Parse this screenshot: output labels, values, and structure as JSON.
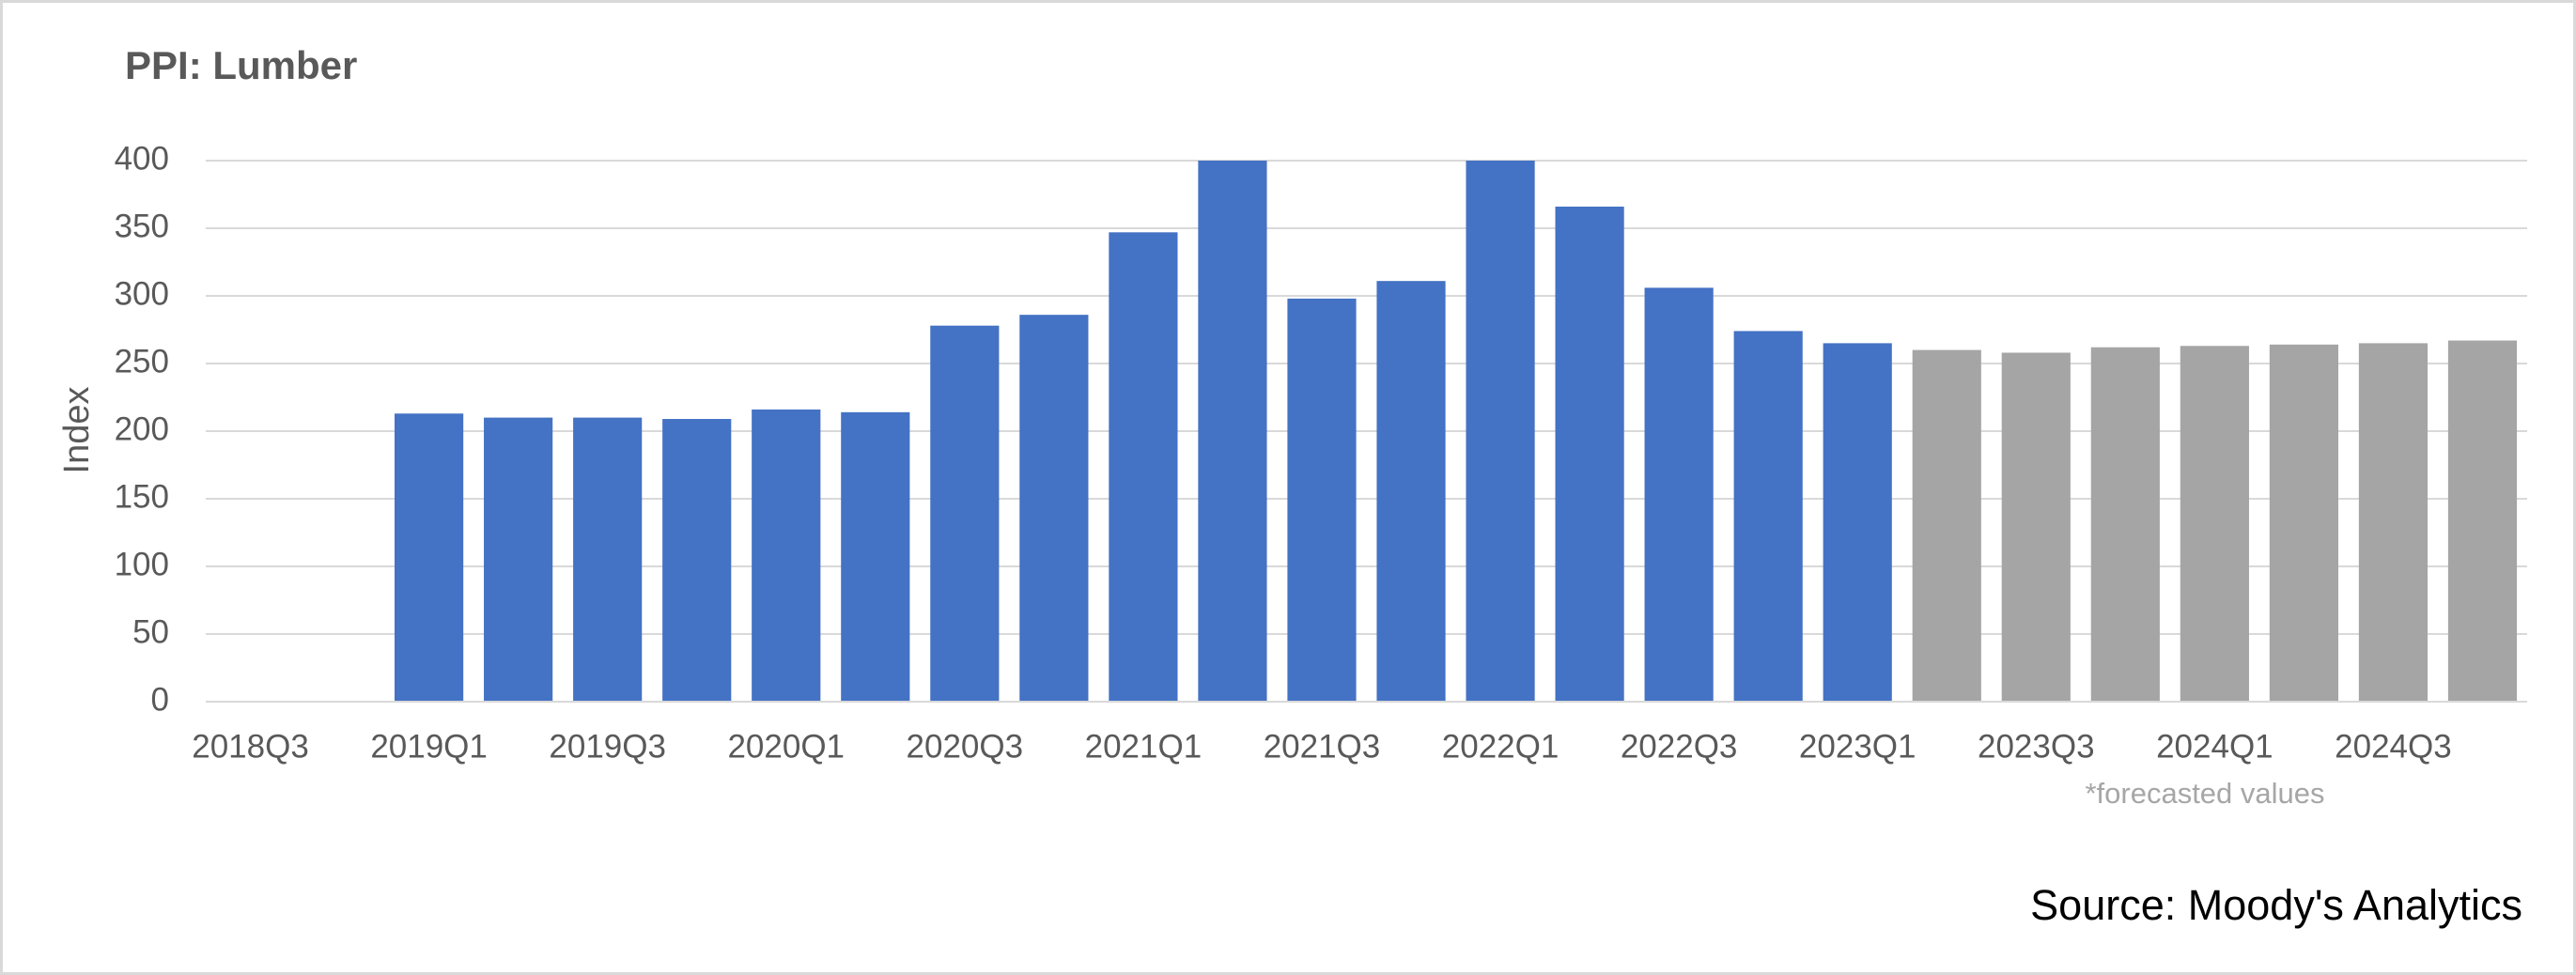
{
  "chart_data": {
    "type": "bar",
    "title": "PPI: Lumber",
    "y_label": "Index",
    "categories": [
      "2018Q3",
      null,
      "2019Q1",
      null,
      "2019Q3",
      null,
      "2020Q1",
      null,
      "2020Q3",
      null,
      "2021Q1",
      null,
      "2021Q3",
      null,
      "2022Q1",
      null,
      "2022Q3",
      null,
      "2023Q1",
      null,
      "2023Q3",
      null,
      "2024Q1",
      null,
      "2024Q3",
      null
    ],
    "values": [
      null,
      null,
      213,
      210,
      210,
      209,
      216,
      214,
      278,
      286,
      347,
      400,
      298,
      311,
      400,
      366,
      306,
      274,
      265,
      260,
      258,
      262,
      263,
      264,
      265,
      267
    ],
    "colors": [
      null,
      null,
      "#4472c4",
      "#4472c4",
      "#4472c4",
      "#4472c4",
      "#4472c4",
      "#4472c4",
      "#4472c4",
      "#4472c4",
      "#4472c4",
      "#4472c4",
      "#4472c4",
      "#4472c4",
      "#4472c4",
      "#4472c4",
      "#4472c4",
      "#4472c4",
      "#4472c4",
      "#a5a5a5",
      "#a5a5a5",
      "#a5a5a5",
      "#a5a5a5",
      "#a5a5a5",
      "#a5a5a5",
      "#a5a5a5"
    ],
    "ylim": [
      0,
      400
    ],
    "yticks": [
      0,
      50,
      100,
      150,
      200,
      250,
      300,
      350,
      400
    ],
    "grid": true,
    "annotation": "*forecasted values",
    "source": "Source: Moody's Analytics"
  }
}
